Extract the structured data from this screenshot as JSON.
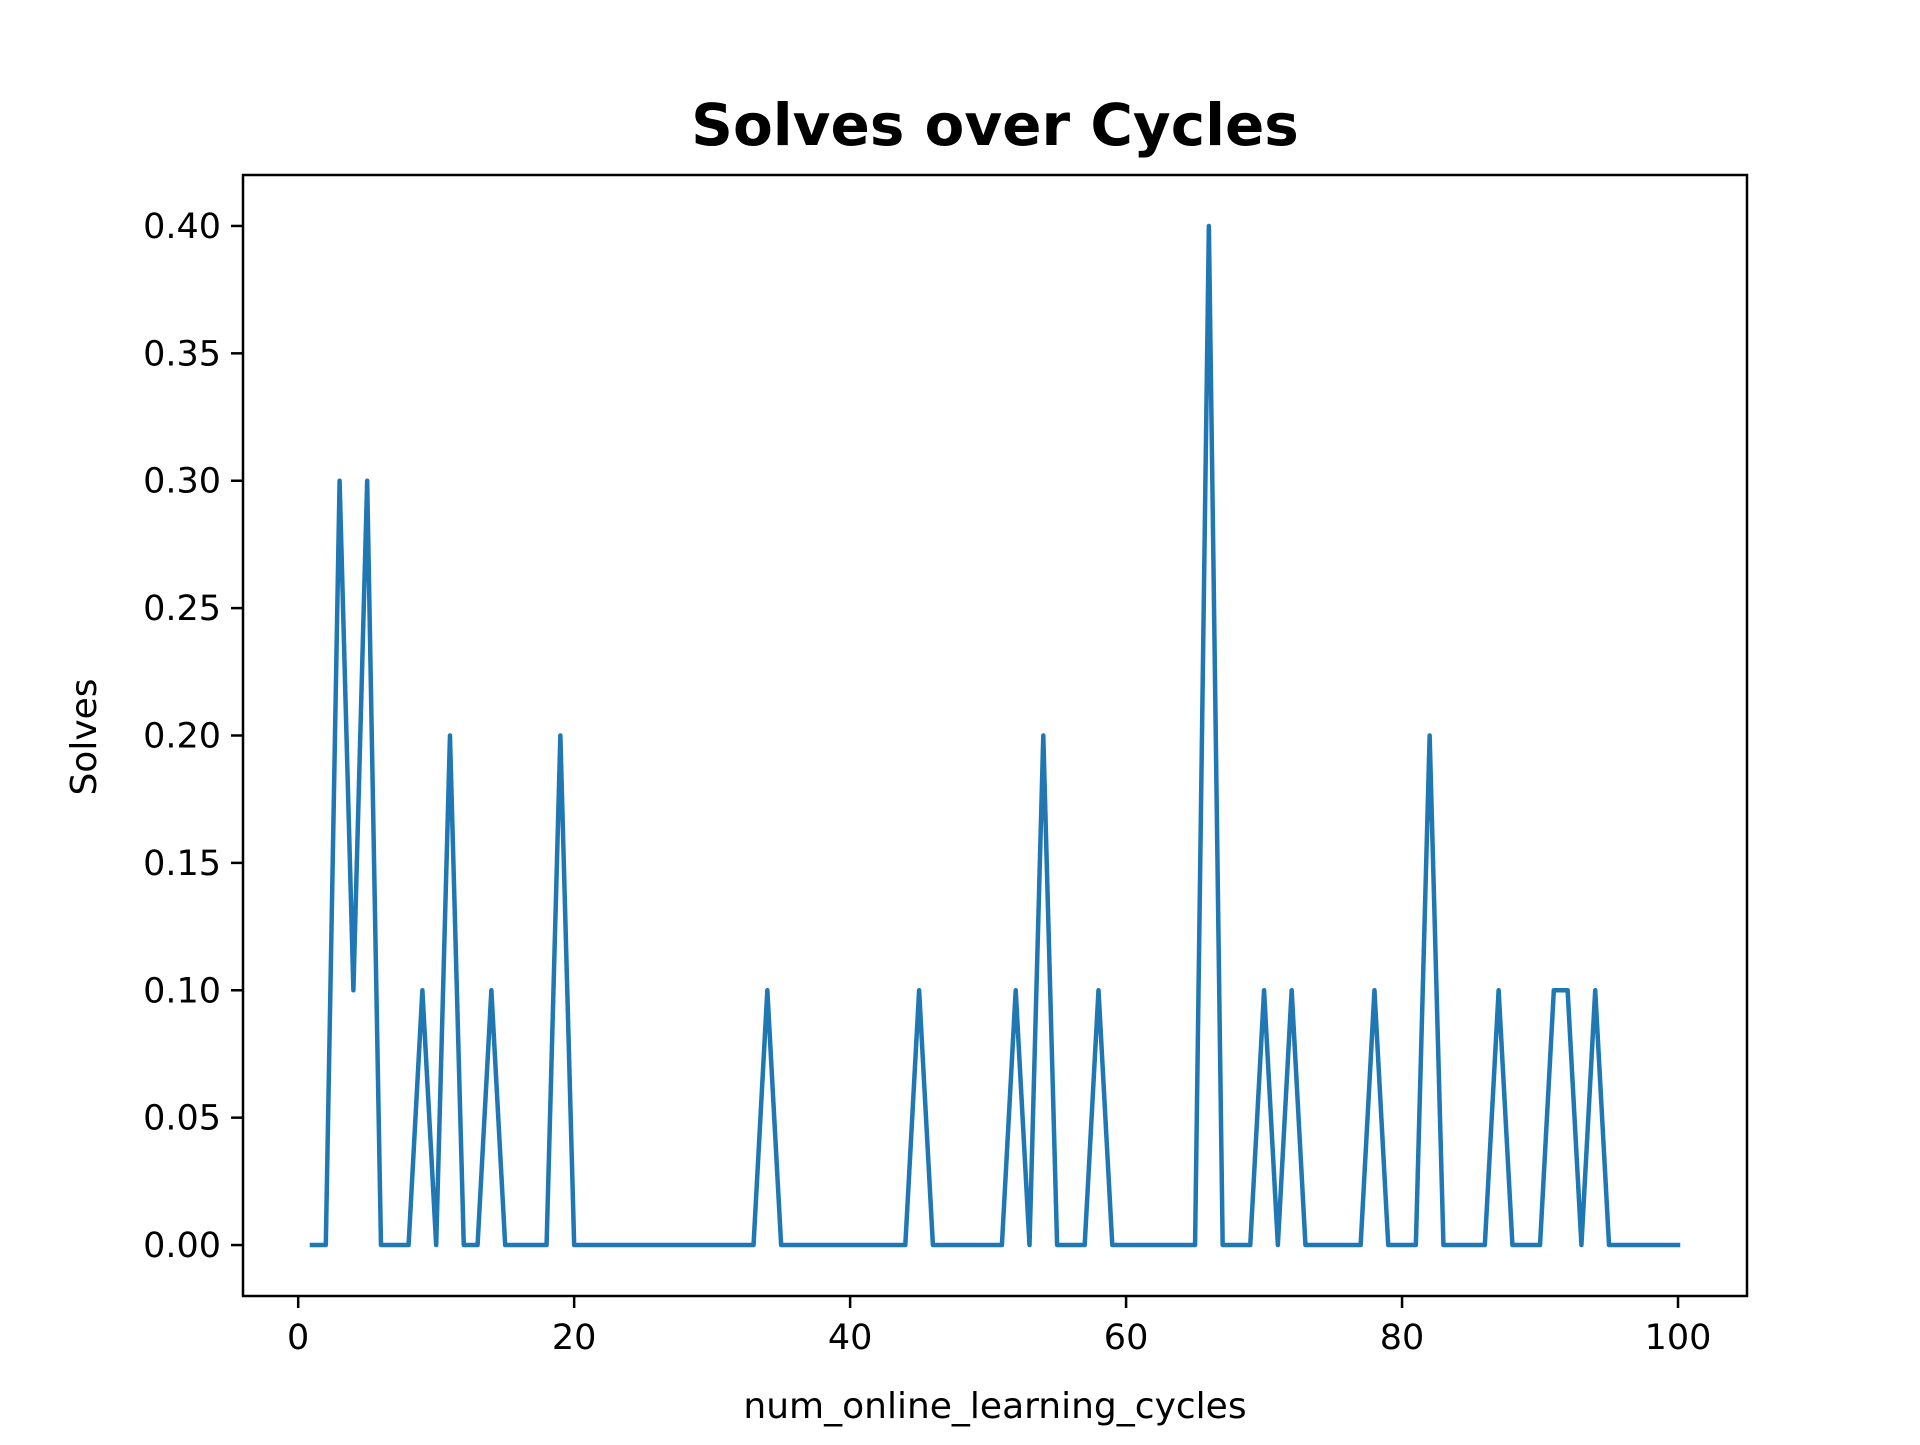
{
  "chart_data": {
    "type": "line",
    "title": "Solves over Cycles",
    "xlabel": "num_online_learning_cycles",
    "ylabel": "Solves",
    "xlim": [
      -4,
      105
    ],
    "ylim": [
      -0.02,
      0.42
    ],
    "xticks": [
      0,
      20,
      40,
      60,
      80,
      100
    ],
    "xtick_labels": [
      "0",
      "20",
      "40",
      "60",
      "80",
      "100"
    ],
    "yticks": [
      0.0,
      0.05,
      0.1,
      0.15,
      0.2,
      0.25,
      0.3,
      0.35,
      0.4
    ],
    "ytick_labels": [
      "0.00",
      "0.05",
      "0.10",
      "0.15",
      "0.20",
      "0.25",
      "0.30",
      "0.35",
      "0.40"
    ],
    "grid": false,
    "line_color": "#1f77b4",
    "series": [
      {
        "x": [
          1,
          2,
          3,
          4,
          5,
          6,
          7,
          8,
          9,
          10,
          11,
          12,
          13,
          14,
          15,
          16,
          17,
          18,
          19,
          20,
          21,
          22,
          23,
          24,
          25,
          26,
          27,
          28,
          29,
          30,
          31,
          32,
          33,
          34,
          35,
          36,
          37,
          38,
          39,
          40,
          41,
          42,
          43,
          44,
          45,
          46,
          47,
          48,
          49,
          50,
          51,
          52,
          53,
          54,
          55,
          56,
          57,
          58,
          59,
          60,
          61,
          62,
          63,
          64,
          65,
          66,
          67,
          68,
          69,
          70,
          71,
          72,
          73,
          74,
          75,
          76,
          77,
          78,
          79,
          80,
          81,
          82,
          83,
          84,
          85,
          86,
          87,
          88,
          89,
          90,
          91,
          92,
          93,
          94,
          95,
          96,
          97,
          98,
          99,
          100
        ],
        "values": [
          0,
          0,
          0.3,
          0.1,
          0.3,
          0,
          0,
          0,
          0.1,
          0,
          0.2,
          0,
          0,
          0.1,
          0,
          0,
          0,
          0,
          0.2,
          0,
          0,
          0,
          0,
          0,
          0,
          0,
          0,
          0,
          0,
          0,
          0,
          0,
          0,
          0.1,
          0,
          0,
          0,
          0,
          0,
          0,
          0,
          0,
          0,
          0,
          0.1,
          0,
          0,
          0,
          0,
          0,
          0,
          0.1,
          0,
          0.2,
          0,
          0,
          0,
          0.1,
          0,
          0,
          0,
          0,
          0,
          0,
          0,
          0.4,
          0,
          0,
          0,
          0.1,
          0,
          0.1,
          0,
          0,
          0,
          0,
          0,
          0.1,
          0,
          0,
          0,
          0.2,
          0,
          0,
          0,
          0,
          0.1,
          0,
          0,
          0,
          0.1,
          0.1,
          0,
          0.1,
          0,
          0,
          0,
          0,
          0,
          0
        ]
      }
    ]
  }
}
